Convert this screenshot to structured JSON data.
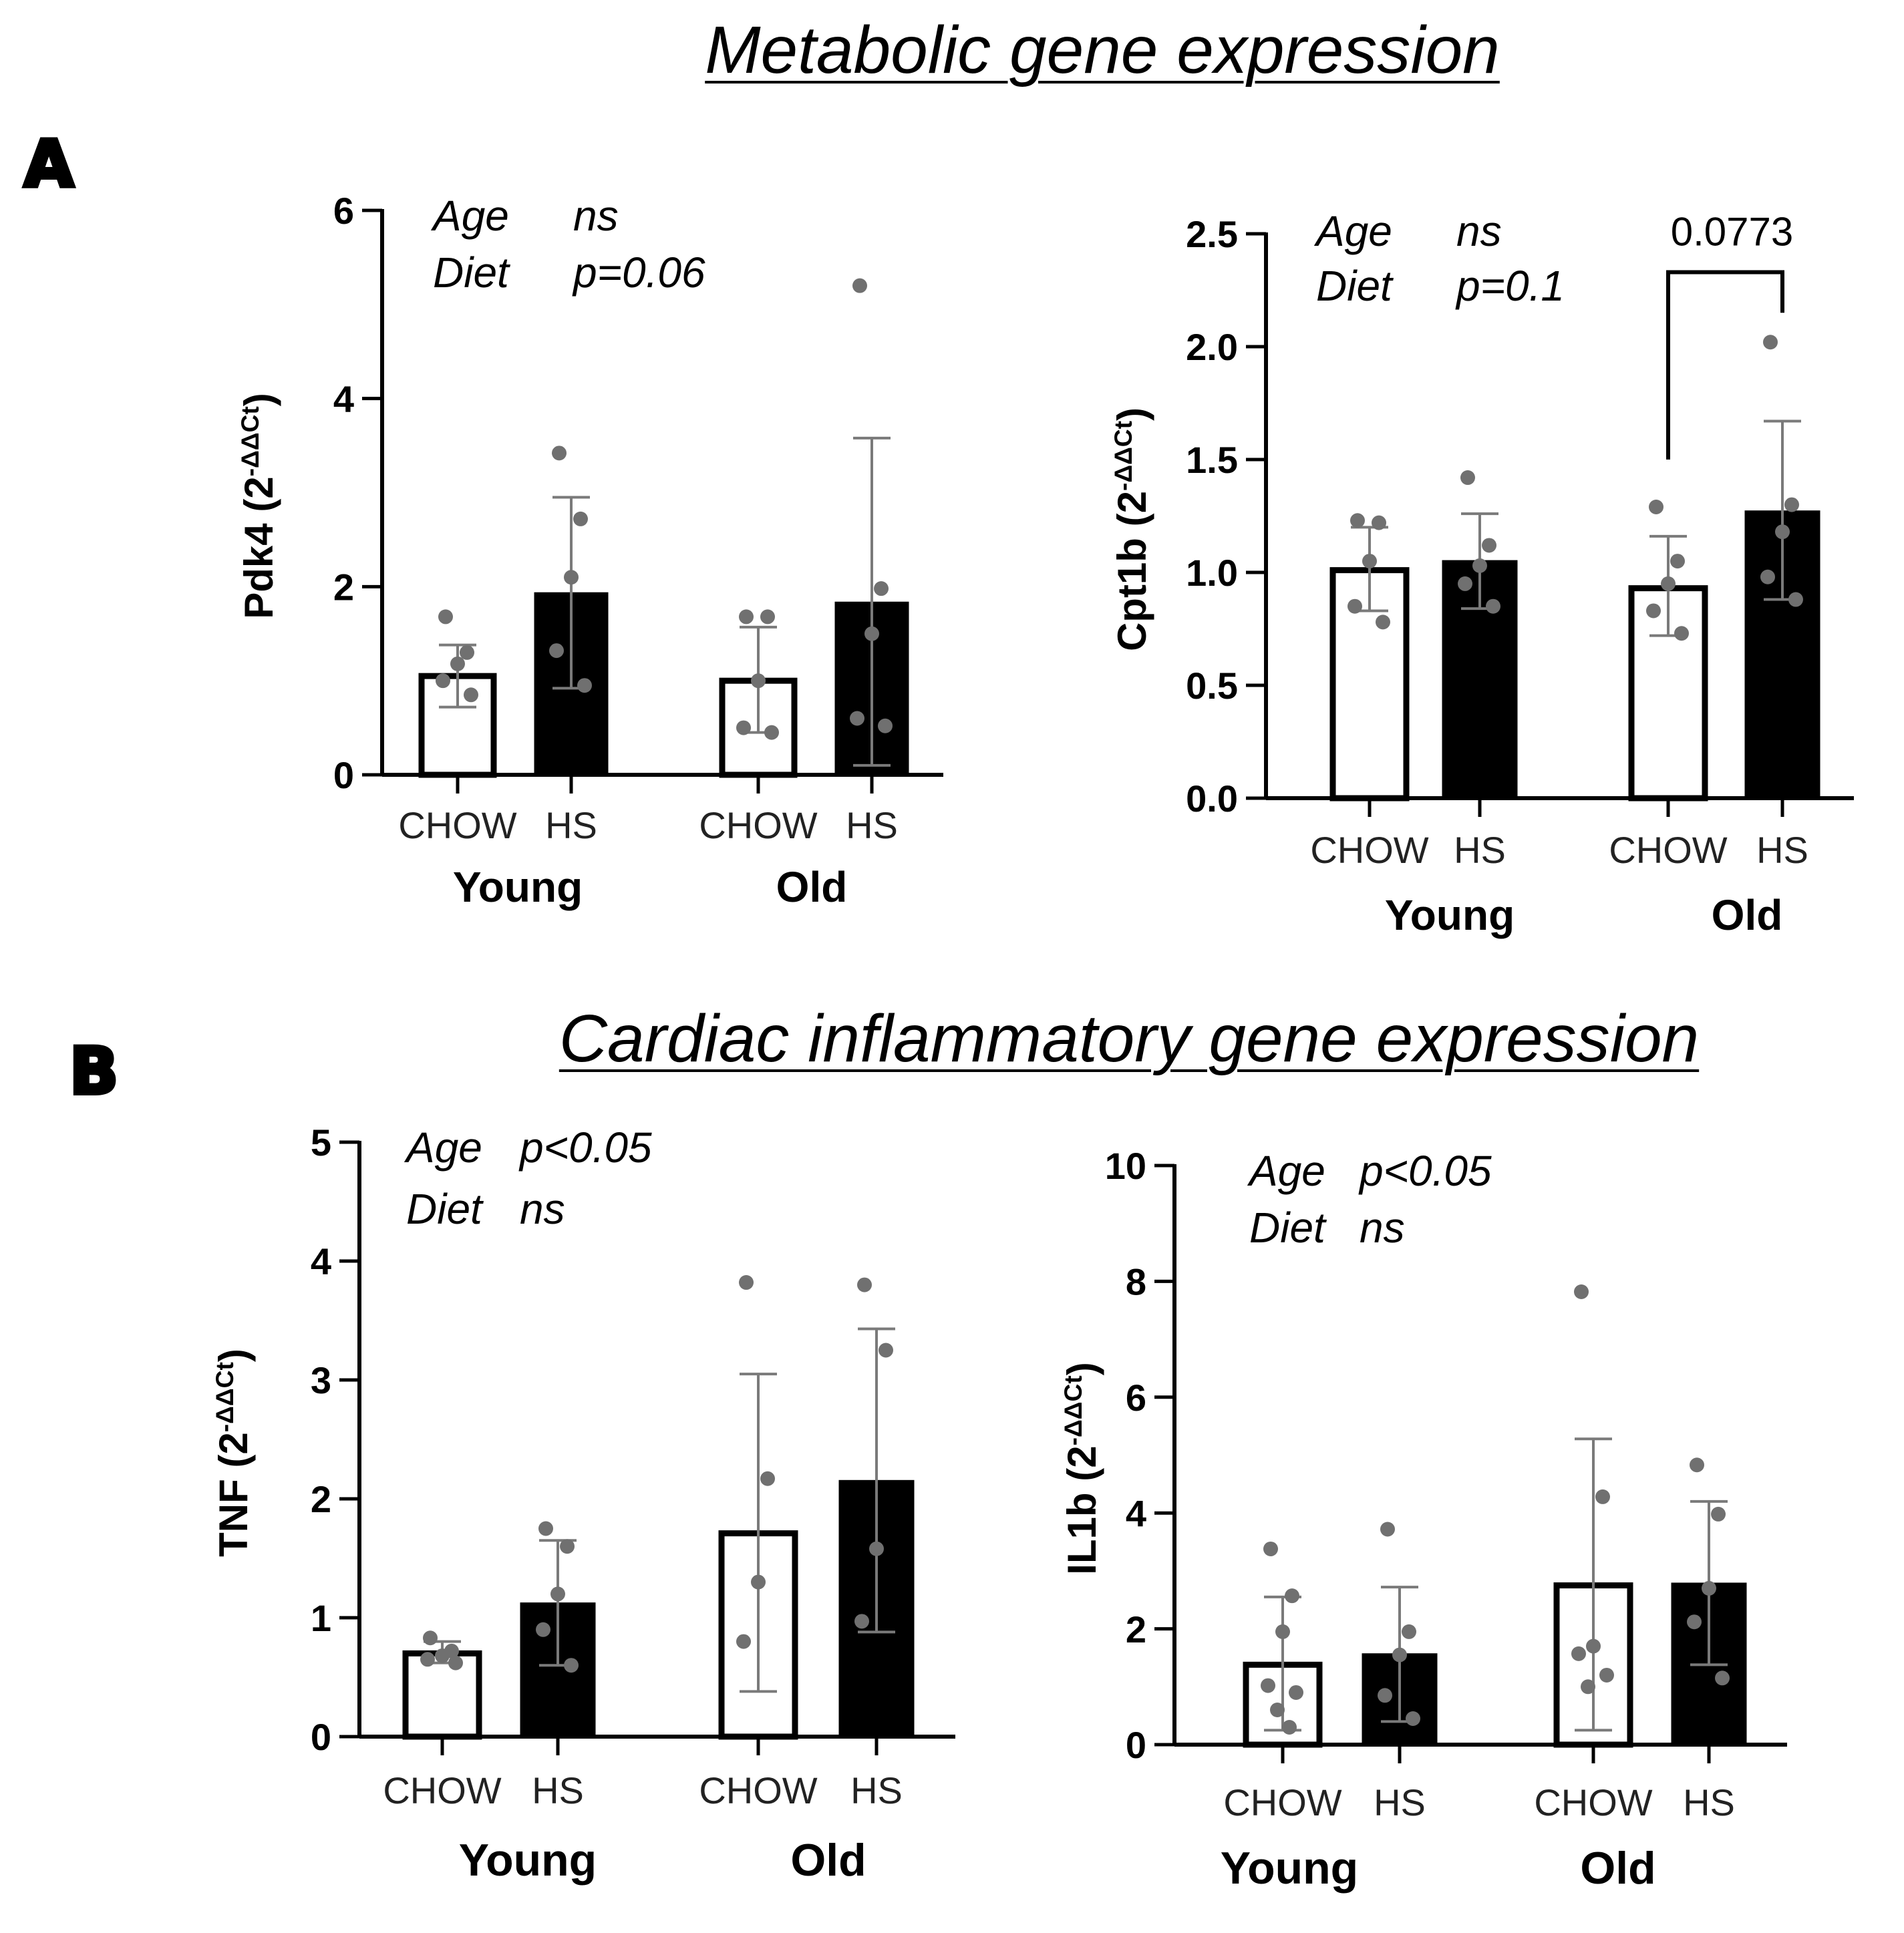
{
  "section_a": {
    "letter": "A",
    "title": "Metabolic gene expression"
  },
  "section_b": {
    "letter": "B",
    "title": "Cardiac inflammatory gene expression"
  },
  "chart_data": [
    {
      "type": "bar",
      "id": "pdk4",
      "ylabel_main": "Pdk4 (2",
      "ylabel_sup": "-ΔΔCt",
      "ylabel_close": ")",
      "ylim": [
        0,
        6
      ],
      "yticks": [
        0,
        2,
        4,
        6
      ],
      "tick_labels": [
        "0",
        "2",
        "4",
        "6"
      ],
      "categories": [
        "CHOW",
        "HS",
        "CHOW",
        "HS"
      ],
      "groups": [
        "Young",
        "Old"
      ],
      "bars": [
        {
          "group": "Young",
          "diet": "CHOW",
          "fill": "white",
          "mean": 1.05,
          "err_low": 0.72,
          "err_high": 1.38,
          "points": [
            1.68,
            1.3,
            1.18,
            1.0,
            0.85
          ]
        },
        {
          "group": "Young",
          "diet": "HS",
          "fill": "black",
          "mean": 1.93,
          "err_low": 0.92,
          "err_high": 2.95,
          "points": [
            3.42,
            2.72,
            2.1,
            1.32,
            0.95
          ]
        },
        {
          "group": "Old",
          "diet": "CHOW",
          "fill": "white",
          "mean": 1.0,
          "err_low": 0.45,
          "err_high": 1.57,
          "points": [
            1.68,
            1.68,
            1.0,
            0.5,
            0.45
          ]
        },
        {
          "group": "Old",
          "diet": "HS",
          "fill": "black",
          "mean": 1.83,
          "err_low": 0.1,
          "err_high": 3.58,
          "points": [
            5.2,
            1.98,
            1.5,
            0.6,
            0.52
          ]
        }
      ],
      "stats": [
        {
          "factor": "Age",
          "value": "ns"
        },
        {
          "factor": "Diet",
          "value": "p=0.06"
        }
      ]
    },
    {
      "type": "bar",
      "id": "cpt1b",
      "ylabel_main": "Cpt1b (2",
      "ylabel_sup": "-ΔΔCt",
      "ylabel_close": ")",
      "ylim": [
        0,
        2.5
      ],
      "yticks": [
        0,
        0.5,
        1.0,
        1.5,
        2.0,
        2.5
      ],
      "tick_labels": [
        "0.0",
        "0.5",
        "1.0",
        "1.5",
        "2.0",
        "2.5"
      ],
      "categories": [
        "CHOW",
        "HS",
        "CHOW",
        "HS"
      ],
      "groups": [
        "Young",
        "Old"
      ],
      "bars": [
        {
          "group": "Young",
          "diet": "CHOW",
          "fill": "white",
          "mean": 1.01,
          "err_low": 0.83,
          "err_high": 1.2,
          "points": [
            1.23,
            1.22,
            1.05,
            0.85,
            0.78
          ]
        },
        {
          "group": "Young",
          "diet": "HS",
          "fill": "black",
          "mean": 1.05,
          "err_low": 0.84,
          "err_high": 1.26,
          "points": [
            1.42,
            1.12,
            1.03,
            0.95,
            0.85
          ]
        },
        {
          "group": "Old",
          "diet": "CHOW",
          "fill": "white",
          "mean": 0.93,
          "err_low": 0.72,
          "err_high": 1.16,
          "points": [
            1.29,
            1.05,
            0.95,
            0.83,
            0.73
          ]
        },
        {
          "group": "Old",
          "diet": "HS",
          "fill": "black",
          "mean": 1.27,
          "err_low": 0.88,
          "err_high": 1.67,
          "points": [
            2.02,
            1.3,
            1.18,
            0.98,
            0.88
          ]
        }
      ],
      "stats": [
        {
          "factor": "Age",
          "value": "ns"
        },
        {
          "factor": "Diet",
          "value": "p=0.1"
        }
      ],
      "comparison": {
        "from": 2,
        "to": 3,
        "label": "0.0773",
        "y": 2.33,
        "drop_left": 1.5,
        "drop_right": 2.15
      }
    },
    {
      "type": "bar",
      "id": "tnf",
      "ylabel_main": "TNF (2",
      "ylabel_sup": "-ΔΔCt",
      "ylabel_close": ")",
      "ylim": [
        0,
        5
      ],
      "yticks": [
        0,
        1,
        2,
        3,
        4,
        5
      ],
      "tick_labels": [
        "0",
        "1",
        "2",
        "3",
        "4",
        "5"
      ],
      "categories": [
        "CHOW",
        "HS",
        "CHOW",
        "HS"
      ],
      "groups": [
        "Young",
        "Old"
      ],
      "bars": [
        {
          "group": "Young",
          "diet": "CHOW",
          "fill": "white",
          "mean": 0.7,
          "err_low": 0.62,
          "err_high": 0.8,
          "points": [
            0.83,
            0.72,
            0.68,
            0.65,
            0.62
          ]
        },
        {
          "group": "Young",
          "diet": "HS",
          "fill": "black",
          "mean": 1.12,
          "err_low": 0.6,
          "err_high": 1.65,
          "points": [
            1.75,
            1.6,
            1.2,
            0.9,
            0.6
          ]
        },
        {
          "group": "Old",
          "diet": "CHOW",
          "fill": "white",
          "mean": 1.71,
          "err_low": 0.38,
          "err_high": 3.05,
          "points": [
            3.82,
            2.17,
            1.3,
            0.8
          ]
        },
        {
          "group": "Old",
          "diet": "HS",
          "fill": "black",
          "mean": 2.15,
          "err_low": 0.88,
          "err_high": 3.43,
          "points": [
            3.8,
            3.25,
            1.58,
            0.97
          ]
        }
      ],
      "stats": [
        {
          "factor": "Age",
          "value": "p<0.05"
        },
        {
          "factor": "Diet",
          "value": "ns"
        }
      ]
    },
    {
      "type": "bar",
      "id": "il1b",
      "ylabel_main": "IL1b (2",
      "ylabel_sup": "-ΔΔCt",
      "ylabel_close": ")",
      "ylim": [
        0,
        10
      ],
      "yticks": [
        0,
        2,
        4,
        6,
        8,
        10
      ],
      "tick_labels": [
        "0",
        "2",
        "4",
        "6",
        "8",
        "10"
      ],
      "categories": [
        "CHOW",
        "HS",
        "CHOW",
        "HS"
      ],
      "groups": [
        "Young",
        "Old"
      ],
      "bars": [
        {
          "group": "Young",
          "diet": "CHOW",
          "fill": "white",
          "mean": 1.38,
          "err_low": 0.25,
          "err_high": 2.55,
          "points": [
            3.38,
            2.57,
            1.95,
            1.02,
            0.9,
            0.6,
            0.3
          ]
        },
        {
          "group": "Young",
          "diet": "HS",
          "fill": "black",
          "mean": 1.56,
          "err_low": 0.4,
          "err_high": 2.72,
          "points": [
            3.72,
            1.95,
            1.55,
            0.85,
            0.45
          ]
        },
        {
          "group": "Old",
          "diet": "CHOW",
          "fill": "white",
          "mean": 2.75,
          "err_low": 0.25,
          "err_high": 5.28,
          "points": [
            7.82,
            4.28,
            1.7,
            1.57,
            1.2,
            1.0
          ]
        },
        {
          "group": "Old",
          "diet": "HS",
          "fill": "black",
          "mean": 2.78,
          "err_low": 1.38,
          "err_high": 4.2,
          "points": [
            4.83,
            3.98,
            2.7,
            2.12,
            1.15
          ]
        }
      ],
      "stats": [
        {
          "factor": "Age",
          "value": "p<0.05"
        },
        {
          "factor": "Diet",
          "value": "ns"
        }
      ]
    }
  ]
}
